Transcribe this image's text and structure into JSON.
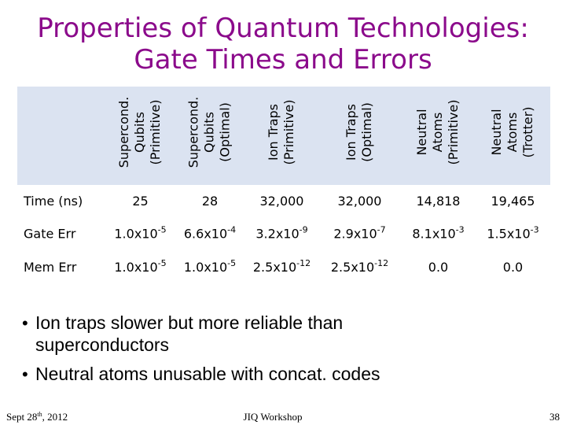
{
  "header": {
    "title": [
      "Properties of Quantum Technologies:",
      "Gate Times and Errors"
    ]
  },
  "table": {
    "columns": [
      [
        "Supercond.",
        "Qubits",
        "(Primitive)"
      ],
      [
        "Supercond.",
        "Qubits",
        "(Optimal)"
      ],
      [
        "Ion Traps",
        "(Primitive)"
      ],
      [
        "Ion Traps",
        "(Optimal)"
      ],
      [
        "Neutral",
        "Atoms",
        "(Primitive)"
      ],
      [
        "Neutral",
        "Atoms",
        "(Trotter)"
      ]
    ],
    "rows": [
      {
        "label": "Time (ns)",
        "cells": [
          {
            "base": "25"
          },
          {
            "base": "28"
          },
          {
            "base": "32,000"
          },
          {
            "base": "32,000"
          },
          {
            "base": "14,818"
          },
          {
            "base": "19,465"
          }
        ]
      },
      {
        "label": "Gate Err",
        "cells": [
          {
            "base": "1.0x10",
            "exp": "-5"
          },
          {
            "base": "6.6x10",
            "exp": "-4"
          },
          {
            "base": "3.2x10",
            "exp": "-9"
          },
          {
            "base": "2.9x10",
            "exp": "-7"
          },
          {
            "base": "8.1x10",
            "exp": "-3"
          },
          {
            "base": "1.5x10",
            "exp": "-3"
          }
        ]
      },
      {
        "label": "Mem Err",
        "cells": [
          {
            "base": "1.0x10",
            "exp": "-5"
          },
          {
            "base": "1.0x10",
            "exp": "-5"
          },
          {
            "base": "2.5x10",
            "exp": "-12"
          },
          {
            "base": "2.5x10",
            "exp": "-12"
          },
          {
            "base": "0.0"
          },
          {
            "base": "0.0"
          }
        ]
      }
    ]
  },
  "bullets": [
    "Ion traps slower but more reliable than superconductors",
    "Neutral atoms unusable with concat. codes"
  ],
  "footer": {
    "date": {
      "day": "Sept 28",
      "suffix": "th",
      "year": ", 2012"
    },
    "center": "JIQ Workshop",
    "page": "38"
  }
}
